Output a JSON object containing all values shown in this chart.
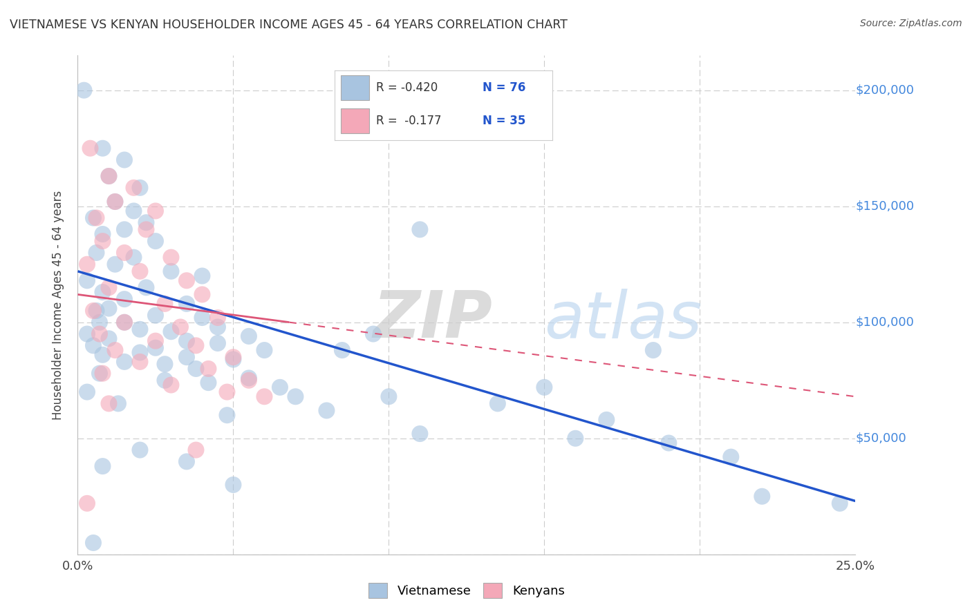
{
  "title": "VIETNAMESE VS KENYAN HOUSEHOLDER INCOME AGES 45 - 64 YEARS CORRELATION CHART",
  "source": "Source: ZipAtlas.com",
  "ylabel": "Householder Income Ages 45 - 64 years",
  "xlim": [
    0.0,
    0.25
  ],
  "ylim": [
    0,
    215000
  ],
  "xticks": [
    0.0,
    0.05,
    0.1,
    0.15,
    0.2,
    0.25
  ],
  "yticks": [
    0,
    50000,
    100000,
    150000,
    200000
  ],
  "viet_color": "#a8c4e0",
  "kenyan_color": "#f4a8b8",
  "viet_line_color": "#2255cc",
  "kenyan_line_color": "#dd5577",
  "background_color": "#ffffff",
  "grid_color": "#cccccc",
  "viet_data": [
    [
      0.002,
      200000
    ],
    [
      0.008,
      175000
    ],
    [
      0.015,
      170000
    ],
    [
      0.01,
      163000
    ],
    [
      0.02,
      158000
    ],
    [
      0.012,
      152000
    ],
    [
      0.018,
      148000
    ],
    [
      0.005,
      145000
    ],
    [
      0.022,
      143000
    ],
    [
      0.015,
      140000
    ],
    [
      0.008,
      138000
    ],
    [
      0.025,
      135000
    ],
    [
      0.11,
      140000
    ],
    [
      0.006,
      130000
    ],
    [
      0.018,
      128000
    ],
    [
      0.012,
      125000
    ],
    [
      0.03,
      122000
    ],
    [
      0.04,
      120000
    ],
    [
      0.003,
      118000
    ],
    [
      0.022,
      115000
    ],
    [
      0.008,
      113000
    ],
    [
      0.015,
      110000
    ],
    [
      0.035,
      108000
    ],
    [
      0.01,
      106000
    ],
    [
      0.006,
      105000
    ],
    [
      0.025,
      103000
    ],
    [
      0.04,
      102000
    ],
    [
      0.007,
      100000
    ],
    [
      0.015,
      100000
    ],
    [
      0.045,
      98000
    ],
    [
      0.02,
      97000
    ],
    [
      0.03,
      96000
    ],
    [
      0.003,
      95000
    ],
    [
      0.055,
      94000
    ],
    [
      0.01,
      93000
    ],
    [
      0.035,
      92000
    ],
    [
      0.045,
      91000
    ],
    [
      0.005,
      90000
    ],
    [
      0.025,
      89000
    ],
    [
      0.06,
      88000
    ],
    [
      0.02,
      87000
    ],
    [
      0.008,
      86000
    ],
    [
      0.035,
      85000
    ],
    [
      0.05,
      84000
    ],
    [
      0.015,
      83000
    ],
    [
      0.028,
      82000
    ],
    [
      0.038,
      80000
    ],
    [
      0.007,
      78000
    ],
    [
      0.055,
      76000
    ],
    [
      0.028,
      75000
    ],
    [
      0.042,
      74000
    ],
    [
      0.065,
      72000
    ],
    [
      0.003,
      70000
    ],
    [
      0.07,
      68000
    ],
    [
      0.013,
      65000
    ],
    [
      0.08,
      62000
    ],
    [
      0.048,
      60000
    ],
    [
      0.095,
      95000
    ],
    [
      0.085,
      88000
    ],
    [
      0.185,
      88000
    ],
    [
      0.15,
      72000
    ],
    [
      0.19,
      48000
    ],
    [
      0.21,
      42000
    ],
    [
      0.1,
      68000
    ],
    [
      0.02,
      45000
    ],
    [
      0.035,
      40000
    ],
    [
      0.008,
      38000
    ],
    [
      0.11,
      52000
    ],
    [
      0.05,
      30000
    ],
    [
      0.16,
      50000
    ],
    [
      0.22,
      25000
    ],
    [
      0.005,
      5000
    ],
    [
      0.135,
      65000
    ],
    [
      0.17,
      58000
    ],
    [
      0.245,
      22000
    ]
  ],
  "kenyan_data": [
    [
      0.004,
      175000
    ],
    [
      0.01,
      163000
    ],
    [
      0.018,
      158000
    ],
    [
      0.012,
      152000
    ],
    [
      0.025,
      148000
    ],
    [
      0.006,
      145000
    ],
    [
      0.022,
      140000
    ],
    [
      0.008,
      135000
    ],
    [
      0.015,
      130000
    ],
    [
      0.03,
      128000
    ],
    [
      0.003,
      125000
    ],
    [
      0.02,
      122000
    ],
    [
      0.035,
      118000
    ],
    [
      0.01,
      115000
    ],
    [
      0.04,
      112000
    ],
    [
      0.028,
      108000
    ],
    [
      0.005,
      105000
    ],
    [
      0.045,
      102000
    ],
    [
      0.015,
      100000
    ],
    [
      0.033,
      98000
    ],
    [
      0.007,
      95000
    ],
    [
      0.025,
      92000
    ],
    [
      0.038,
      90000
    ],
    [
      0.012,
      88000
    ],
    [
      0.05,
      85000
    ],
    [
      0.02,
      83000
    ],
    [
      0.042,
      80000
    ],
    [
      0.008,
      78000
    ],
    [
      0.055,
      75000
    ],
    [
      0.03,
      73000
    ],
    [
      0.048,
      70000
    ],
    [
      0.06,
      68000
    ],
    [
      0.01,
      65000
    ],
    [
      0.038,
      45000
    ],
    [
      0.003,
      22000
    ]
  ],
  "viet_line_x0": 0.0,
  "viet_line_y0": 122000,
  "viet_line_x1": 0.25,
  "viet_line_y1": 23000,
  "kenyan_line_x0": 0.0,
  "kenyan_line_y0": 112000,
  "kenyan_line_x1": 0.25,
  "kenyan_line_y1": 68000,
  "kenyan_solid_xend": 0.068
}
